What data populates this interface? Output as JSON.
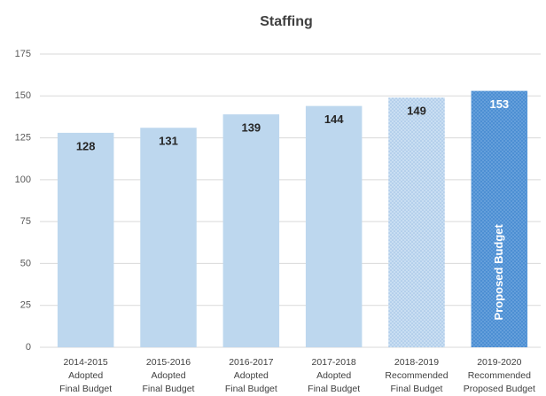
{
  "chart_data": {
    "type": "bar",
    "title": "Staffing",
    "categories": [
      [
        "2014-2015",
        "Adopted",
        "Final Budget"
      ],
      [
        "2015-2016",
        "Adopted",
        "Final Budget"
      ],
      [
        "2016-2017",
        "Adopted",
        "Final Budget"
      ],
      [
        "2017-2018",
        "Adopted",
        "Final Budget"
      ],
      [
        "2018-2019",
        "Recommended",
        "Final Budget"
      ],
      [
        "2019-2020",
        "Recommended",
        "Proposed Budget"
      ]
    ],
    "values": [
      128,
      131,
      139,
      144,
      149,
      153
    ],
    "colors": [
      "#bdd7ee",
      "#bdd7ee",
      "#bdd7ee",
      "#bdd7ee",
      "#c9def2",
      "#4d8fd3"
    ],
    "bar_styles": [
      "solid",
      "solid",
      "solid",
      "solid",
      "dotted",
      "dotted"
    ],
    "value_label_colors": [
      "#262626",
      "#262626",
      "#262626",
      "#262626",
      "#262626",
      "#ffffff"
    ],
    "annotation": "Proposed Budget",
    "ylim": [
      0,
      175
    ],
    "yticks": [
      0,
      25,
      50,
      75,
      100,
      125,
      150,
      175
    ],
    "grid": true
  }
}
